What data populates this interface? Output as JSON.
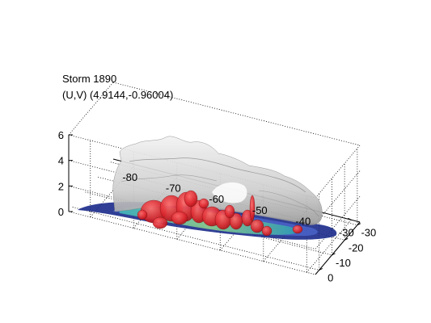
{
  "figure": {
    "title_line1": "Storm 1890",
    "title_line2": "(U,V) (4.9144,-0.96004)"
  },
  "chart_data": {
    "type": "surface3d",
    "title": "Storm 1890",
    "subtitle": "(U,V) (4.9144,-0.96004)",
    "axes": {
      "x": {
        "ticks": [
          -80,
          -70,
          -60,
          -50,
          -40,
          -30
        ],
        "range": [
          -85,
          -28
        ]
      },
      "y": {
        "ticks": [
          0,
          -10,
          -20,
          -30
        ],
        "range": [
          -32,
          3
        ]
      },
      "z": {
        "ticks": [
          0,
          2,
          4,
          6
        ],
        "range": [
          0,
          6
        ]
      }
    },
    "grid": true,
    "layers": [
      {
        "name": "",
        "color": "#c8c8c8",
        "kind": "translucent gray cloud surface"
      },
      {
        "name": "",
        "color": "#d8242c",
        "kind": "red core isosurface"
      },
      {
        "name": "",
        "color": "#7fc48a",
        "kind": "green-cyan footprint"
      },
      {
        "name": "",
        "color": "#1a2a8a",
        "kind": "dark blue footprint outline"
      }
    ]
  }
}
